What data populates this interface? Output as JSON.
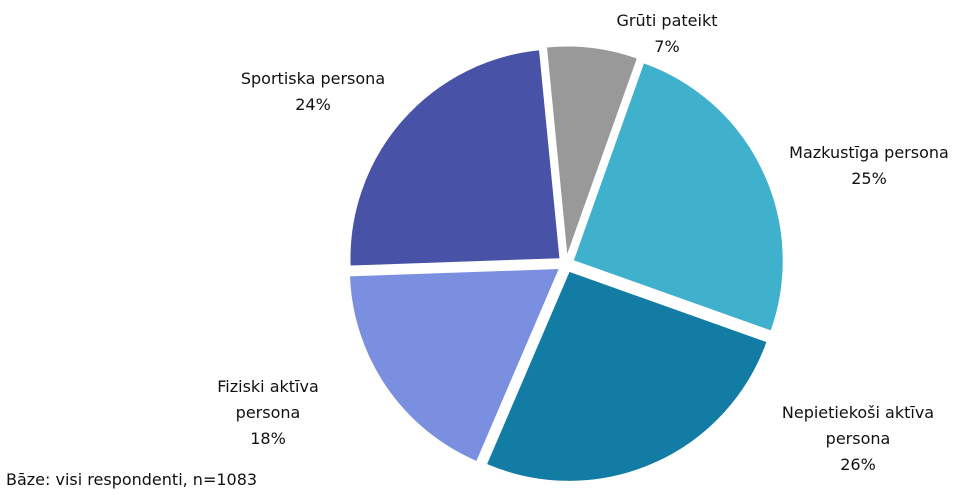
{
  "chart_data": {
    "type": "pie",
    "categories": [
      "Grūti pateikt",
      "Mazkustīga persona",
      "Nepietiekoši aktīva persona",
      "Fiziski aktīva persona",
      "Sportiska persona"
    ],
    "values": [
      7,
      25,
      26,
      18,
      24
    ],
    "value_labels": [
      "7%",
      "25%",
      "26%",
      "18%",
      "24%"
    ],
    "colors": [
      "#999999",
      "#40b1cd",
      "#137ca4",
      "#7b8fe0",
      "#4853a7"
    ],
    "footnote": "Bāze: visi respondenti, n=1083"
  }
}
